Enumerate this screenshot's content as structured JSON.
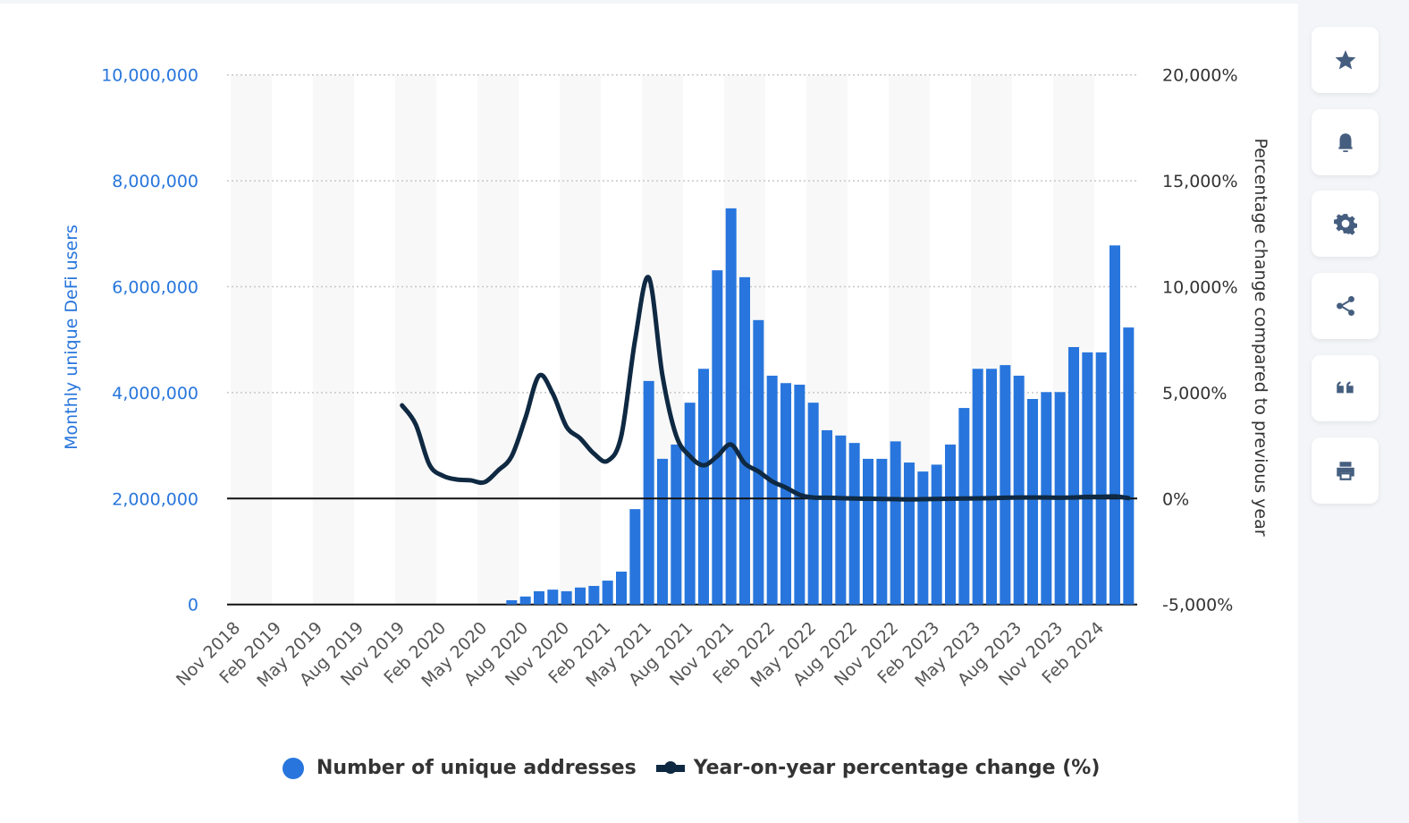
{
  "chart_data": {
    "type": "bar+line",
    "colors": {
      "bars": "#2876dd",
      "line": "#0f2942",
      "left_axis_text": "#2876dd"
    },
    "ylabel_left": "Monthly unique DeFi users",
    "ylabel_right": "Percentage change compared to previous year",
    "ylim_left": [
      0,
      10000000
    ],
    "ylim_right": [
      -5000,
      20000
    ],
    "yticks_left": [
      "0",
      "2,000,000",
      "4,000,000",
      "6,000,000",
      "8,000,000",
      "10,000,000"
    ],
    "yticks_right": [
      "-5,000%",
      "0%",
      "5,000%",
      "10,000%",
      "15,000%",
      "20,000%"
    ],
    "x_start": "Nov 2018",
    "x_end": "Apr 2024",
    "xtick_labels": [
      "Nov 2018",
      "Feb 2019",
      "May 2019",
      "Aug 2019",
      "Nov 2019",
      "Feb 2020",
      "May 2020",
      "Aug 2020",
      "Nov 2020",
      "Feb 2021",
      "May 2021",
      "Aug 2021",
      "Nov 2021",
      "Feb 2022",
      "May 2022",
      "Aug 2022",
      "Nov 2022",
      "Feb 2023",
      "May 2023",
      "Aug 2023",
      "Nov 2023",
      "Feb 2024"
    ],
    "grid": "horizontal dotted, alternating shaded quarter bands",
    "legend_position": "bottom",
    "series": [
      {
        "name": "Number of unique addresses",
        "type": "bar",
        "axis": "left",
        "start": "Jul 2020",
        "values": [
          80000,
          150000,
          250000,
          280000,
          250000,
          320000,
          350000,
          450000,
          620000,
          1800000,
          4220000,
          2750000,
          3020000,
          3810000,
          4450000,
          6310000,
          7480000,
          6180000,
          5370000,
          4320000,
          4180000,
          4150000,
          3810000,
          3290000,
          3190000,
          3050000,
          2750000,
          2750000,
          3080000,
          2680000,
          2510000,
          2640000,
          3020000,
          3710000,
          4450000,
          4450000,
          4520000,
          4320000,
          3880000,
          4010000,
          4010000,
          4860000,
          4760000,
          4760000,
          6780000,
          5230000
        ]
      },
      {
        "name": "Year-on-year percentage change (%)",
        "type": "line",
        "axis": "right",
        "start": "Nov 2019",
        "values": [
          4400,
          3500,
          1600,
          1070,
          900,
          860,
          770,
          1320,
          2000,
          3800,
          5800,
          4950,
          3390,
          2840,
          2120,
          1780,
          2970,
          7480,
          10430,
          5800,
          2970,
          2000,
          1570,
          2000,
          2550,
          1660,
          1280,
          810,
          520,
          180,
          50,
          40,
          20,
          0,
          -10,
          -20,
          -30,
          -40,
          -30,
          -20,
          -10,
          0,
          10,
          20,
          40,
          50,
          50,
          50,
          40,
          50,
          80,
          80,
          100,
          20
        ]
      }
    ]
  },
  "sidebar": {
    "buttons": [
      {
        "icon": "star-icon"
      },
      {
        "icon": "bell-icon"
      },
      {
        "icon": "gear-icon"
      },
      {
        "icon": "share-icon"
      },
      {
        "icon": "quote-icon"
      },
      {
        "icon": "print-icon"
      }
    ]
  }
}
